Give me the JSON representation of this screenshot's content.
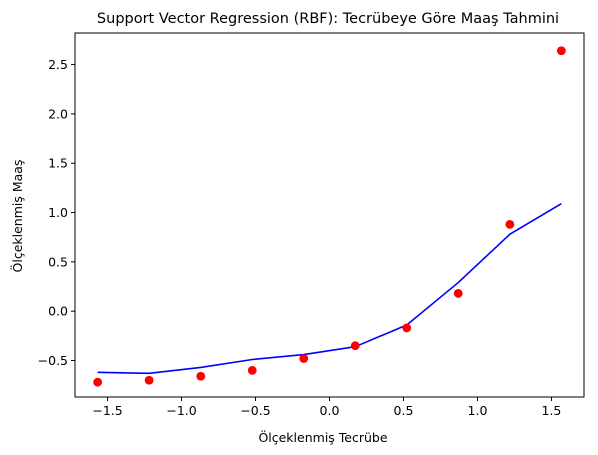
{
  "chart_data": {
    "type": "scatter",
    "title": "Support Vector Regression (RBF): Tecrübeye Göre Maaş Tahmini",
    "xlabel": "Ölçeklenmiş Tecrübe",
    "ylabel": "Ölçeklenmiş Maaş",
    "xlim": [
      -1.72,
      1.72
    ],
    "ylim": [
      -0.87,
      2.82
    ],
    "grid": false,
    "xticks": [
      -1.5,
      -1.0,
      -0.5,
      0.0,
      0.5,
      1.0,
      1.5
    ],
    "xtick_labels": [
      "−1.5",
      "−1.0",
      "−0.5",
      "0.0",
      "0.5",
      "1.0",
      "1.5"
    ],
    "yticks": [
      -0.5,
      0.0,
      0.5,
      1.0,
      1.5,
      2.0,
      2.5
    ],
    "ytick_labels": [
      "−0.5",
      "0.0",
      "0.5",
      "1.0",
      "1.5",
      "2.0",
      "2.5"
    ],
    "series": [
      {
        "kind": "scatter",
        "color": "#ff0000",
        "x": [
          -1.567,
          -1.219,
          -0.87,
          -0.522,
          -0.174,
          0.174,
          0.522,
          0.87,
          1.219,
          1.567
        ],
        "y": [
          -0.72,
          -0.7,
          -0.66,
          -0.6,
          -0.48,
          -0.35,
          -0.17,
          0.18,
          0.88,
          2.64
        ]
      },
      {
        "kind": "line",
        "color": "#0000ff",
        "x": [
          -1.567,
          -1.219,
          -0.87,
          -0.522,
          -0.174,
          0.174,
          0.522,
          0.87,
          1.219,
          1.567
        ],
        "y": [
          -0.62,
          -0.63,
          -0.57,
          -0.49,
          -0.44,
          -0.36,
          -0.14,
          0.29,
          0.78,
          1.09
        ]
      }
    ]
  }
}
